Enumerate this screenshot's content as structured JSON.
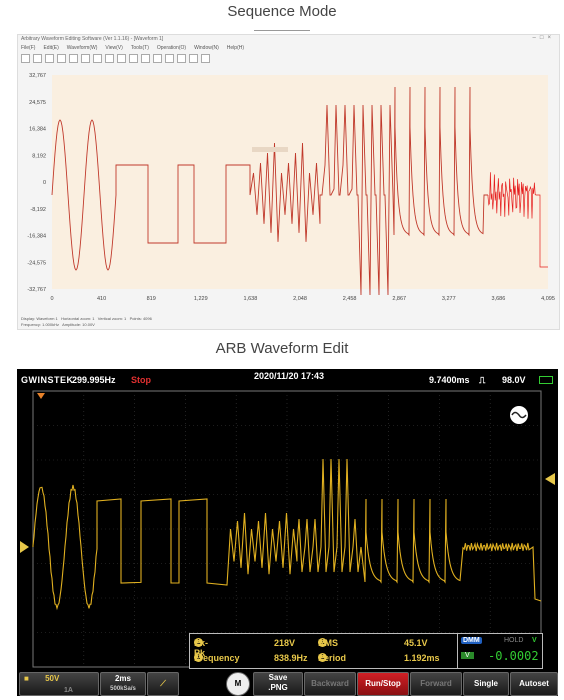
{
  "section1_title": "Sequence Mode",
  "section2_title": "ARB Waveform Edit",
  "editor": {
    "window_title": "Arbitrary Waveform Editing Software (Ver 1.1.16) - [Waveform 1]",
    "menu": [
      "File(F)",
      "Edit(E)",
      "Waveform(W)",
      "View(V)",
      "Tools(T)",
      "Operation(O)",
      "Window(N)",
      "Help(H)"
    ],
    "y_ticks": [
      "32,767",
      "24,575",
      "16,384",
      "8,192",
      "0",
      "-8,192",
      "-16,384",
      "-24,575",
      "-32,767"
    ],
    "x_ticks": [
      "0",
      "410",
      "819",
      "1,229",
      "1,638",
      "2,048",
      "2,458",
      "2,867",
      "3,277",
      "3,686",
      "4,095"
    ],
    "status_fields": [
      "Display: Waveform 1",
      "Horizontal zoom: 1",
      "Vertical zoom: 1",
      "Points: 4096",
      "Frequency: 1.000kHz",
      "Amplitude: 10.00V"
    ],
    "colors": {
      "plot_bg": "#faefe0",
      "trace": "#c0392b",
      "noise": "#e51d1d"
    }
  },
  "scope": {
    "brand": "GWINSTEK",
    "freq": "299.995Hz",
    "state": "Stop",
    "datetime": "2020/11/20  17:43",
    "timebase_offset": "9.7400ms",
    "trigger_level": "98.0V",
    "measurements": [
      {
        "id": "1",
        "name": "Pk-Pk",
        "value": "218V"
      },
      {
        "id": "1",
        "name": "RMS",
        "value": "45.1V"
      },
      {
        "id": "1",
        "name": "Frequency",
        "value": "838.9Hz"
      },
      {
        "id": "1",
        "name": "Period",
        "value": "1.192ms"
      }
    ],
    "dmm": {
      "label": "DMM",
      "hold": "HOLD",
      "mode": "V",
      "value": "-0.0002",
      "unit": "V"
    },
    "ch1_scale": "50V",
    "ch1_coupling": "1A",
    "timebase": "2ms",
    "sample_rate": "500kSa/s",
    "buttons": {
      "m": "M",
      "save": "Save",
      "save_fmt": ".PNG",
      "backward": "Backward",
      "runstop": "Run/Stop",
      "forward": "Forward",
      "single": "Single",
      "autoset": "Autoset"
    },
    "colors": {
      "trace": "#e0b020",
      "runstop": "#c0161b"
    }
  }
}
